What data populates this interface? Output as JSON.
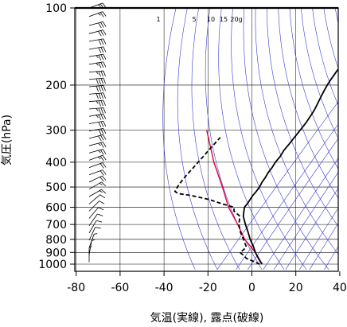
{
  "chart_data": {
    "type": "line",
    "subtype": "skew-t log-p diagram (emagram) with wind barbs",
    "xlabel": "気温(実線), 露点(破線)",
    "ylabel": "気圧(hPa)",
    "xlim": [
      -80,
      40
    ],
    "ylim": [
      1050,
      100
    ],
    "yscale": "log",
    "x_ticks": [
      "-80",
      "-60",
      "-40",
      "-20",
      "0",
      "20",
      "40"
    ],
    "x_tick_values": [
      -80,
      -60,
      -40,
      -20,
      0,
      20,
      40
    ],
    "y_ticks": [
      "100",
      "200",
      "300",
      "400",
      "500",
      "600",
      "700",
      "800",
      "900",
      "1000"
    ],
    "y_tick_values": [
      100,
      200,
      300,
      400,
      500,
      600,
      700,
      800,
      900,
      1000
    ],
    "mixing_ratio_labels": [
      "1",
      "5",
      "10",
      "15",
      "20g"
    ],
    "mixing_ratio_values": [
      1,
      5,
      10,
      15,
      20
    ],
    "grid": true,
    "colors": {
      "temperature": "#000000",
      "dewpoint": "#000000",
      "adiabats": "#3b3bd6",
      "parcel": "#e0003a",
      "isobars": "#000000"
    },
    "series": [
      {
        "name": "気温",
        "style": "solid",
        "points": [
          [
            1000,
            1.6
          ],
          [
            975,
            -0.5
          ],
          [
            950,
            -2.5
          ],
          [
            925,
            -4.5
          ],
          [
            900,
            -6.5
          ],
          [
            850,
            -10.2
          ],
          [
            800,
            -14.5
          ],
          [
            750,
            -18.5
          ],
          [
            700,
            -23.0
          ],
          [
            650,
            -27.5
          ],
          [
            600,
            -30.8
          ],
          [
            580,
            -31.0
          ],
          [
            560,
            -31.5
          ],
          [
            540,
            -32.0
          ],
          [
            520,
            -32.2
          ],
          [
            500,
            -32.6
          ],
          [
            480,
            -33.5
          ],
          [
            460,
            -34.0
          ],
          [
            440,
            -34.8
          ],
          [
            420,
            -35.2
          ],
          [
            400,
            -36.0
          ],
          [
            380,
            -36.3
          ],
          [
            360,
            -37.2
          ],
          [
            340,
            -37.5
          ],
          [
            320,
            -38.0
          ],
          [
            300,
            -38.4
          ],
          [
            280,
            -39.0
          ],
          [
            260,
            -40.0
          ],
          [
            250,
            -40.6
          ],
          [
            240,
            -41.5
          ],
          [
            225,
            -43.0
          ],
          [
            210,
            -44.5
          ],
          [
            200,
            -45.4
          ],
          [
            190,
            -46.2
          ],
          [
            180,
            -46.8
          ],
          [
            170,
            -47.5
          ],
          [
            160,
            -48.0
          ],
          [
            150,
            -48.4
          ],
          [
            140,
            -49.2
          ],
          [
            130,
            -50.0
          ],
          [
            125,
            -51.5
          ],
          [
            120,
            -53.5
          ],
          [
            115,
            -55.0
          ],
          [
            110,
            -56.5
          ],
          [
            105,
            -57.0
          ],
          [
            100,
            -57.7
          ]
        ]
      },
      {
        "name": "露点",
        "style": "dashed",
        "points": [
          [
            1000,
            0.5
          ],
          [
            975,
            -3.5
          ],
          [
            950,
            -8.0
          ],
          [
            925,
            -10.5
          ],
          [
            900,
            -13.5
          ],
          [
            880,
            -13.0
          ],
          [
            860,
            -13.0
          ],
          [
            850,
            -13.5
          ],
          [
            800,
            -17.5
          ],
          [
            750,
            -22.0
          ],
          [
            700,
            -26.0
          ],
          [
            650,
            -29.0
          ],
          [
            620,
            -34.0
          ],
          [
            600,
            -35.5
          ],
          [
            580,
            -43.0
          ],
          [
            560,
            -50.0
          ],
          [
            540,
            -60.0
          ],
          [
            530,
            -67.0
          ],
          [
            520,
            -69.2
          ],
          [
            510,
            -69.5
          ],
          [
            500,
            -70.0
          ],
          [
            480,
            -70.5
          ],
          [
            460,
            -70.8
          ],
          [
            440,
            -71.0
          ],
          [
            420,
            -71.0
          ],
          [
            400,
            -71.2
          ],
          [
            380,
            -71.3
          ],
          [
            360,
            -71.5
          ],
          [
            340,
            -71.6
          ],
          [
            320,
            -71.7
          ]
        ]
      }
    ],
    "parcel_path": [
      [
        1000,
        1.6
      ],
      [
        900,
        -6.5
      ],
      [
        800,
        -17.0
      ],
      [
        700,
        -26.5
      ],
      [
        600,
        -38.0
      ],
      [
        500,
        -49.5
      ],
      [
        400,
        -64.0
      ],
      [
        300,
        -81.0
      ]
    ],
    "wind_barbs": [
      {
        "p": 100,
        "dir": 250,
        "spd": 25
      },
      {
        "p": 108,
        "dir": 250,
        "spd": 25
      },
      {
        "p": 117,
        "dir": 255,
        "spd": 30
      },
      {
        "p": 126,
        "dir": 255,
        "spd": 30
      },
      {
        "p": 135,
        "dir": 260,
        "spd": 30
      },
      {
        "p": 145,
        "dir": 260,
        "spd": 30
      },
      {
        "p": 155,
        "dir": 260,
        "spd": 35
      },
      {
        "p": 166,
        "dir": 260,
        "spd": 35
      },
      {
        "p": 178,
        "dir": 265,
        "spd": 35
      },
      {
        "p": 190,
        "dir": 265,
        "spd": 40
      },
      {
        "p": 203,
        "dir": 265,
        "spd": 40
      },
      {
        "p": 217,
        "dir": 265,
        "spd": 40
      },
      {
        "p": 232,
        "dir": 265,
        "spd": 35
      },
      {
        "p": 248,
        "dir": 265,
        "spd": 35
      },
      {
        "p": 265,
        "dir": 260,
        "spd": 35
      },
      {
        "p": 283,
        "dir": 260,
        "spd": 30
      },
      {
        "p": 302,
        "dir": 260,
        "spd": 30
      },
      {
        "p": 323,
        "dir": 255,
        "spd": 30
      },
      {
        "p": 345,
        "dir": 255,
        "spd": 25
      },
      {
        "p": 368,
        "dir": 255,
        "spd": 25
      },
      {
        "p": 393,
        "dir": 250,
        "spd": 25
      },
      {
        "p": 420,
        "dir": 250,
        "spd": 20
      },
      {
        "p": 448,
        "dir": 250,
        "spd": 20
      },
      {
        "p": 478,
        "dir": 245,
        "spd": 20
      },
      {
        "p": 510,
        "dir": 240,
        "spd": 15
      },
      {
        "p": 545,
        "dir": 240,
        "spd": 15
      },
      {
        "p": 582,
        "dir": 230,
        "spd": 10
      },
      {
        "p": 621,
        "dir": 225,
        "spd": 10
      },
      {
        "p": 663,
        "dir": 220,
        "spd": 10
      },
      {
        "p": 708,
        "dir": 215,
        "spd": 10
      },
      {
        "p": 756,
        "dir": 210,
        "spd": 10
      },
      {
        "p": 807,
        "dir": 205,
        "spd": 10
      },
      {
        "p": 862,
        "dir": 200,
        "spd": 5
      },
      {
        "p": 920,
        "dir": 190,
        "spd": 5
      },
      {
        "p": 982,
        "dir": 180,
        "spd": 5
      }
    ]
  }
}
